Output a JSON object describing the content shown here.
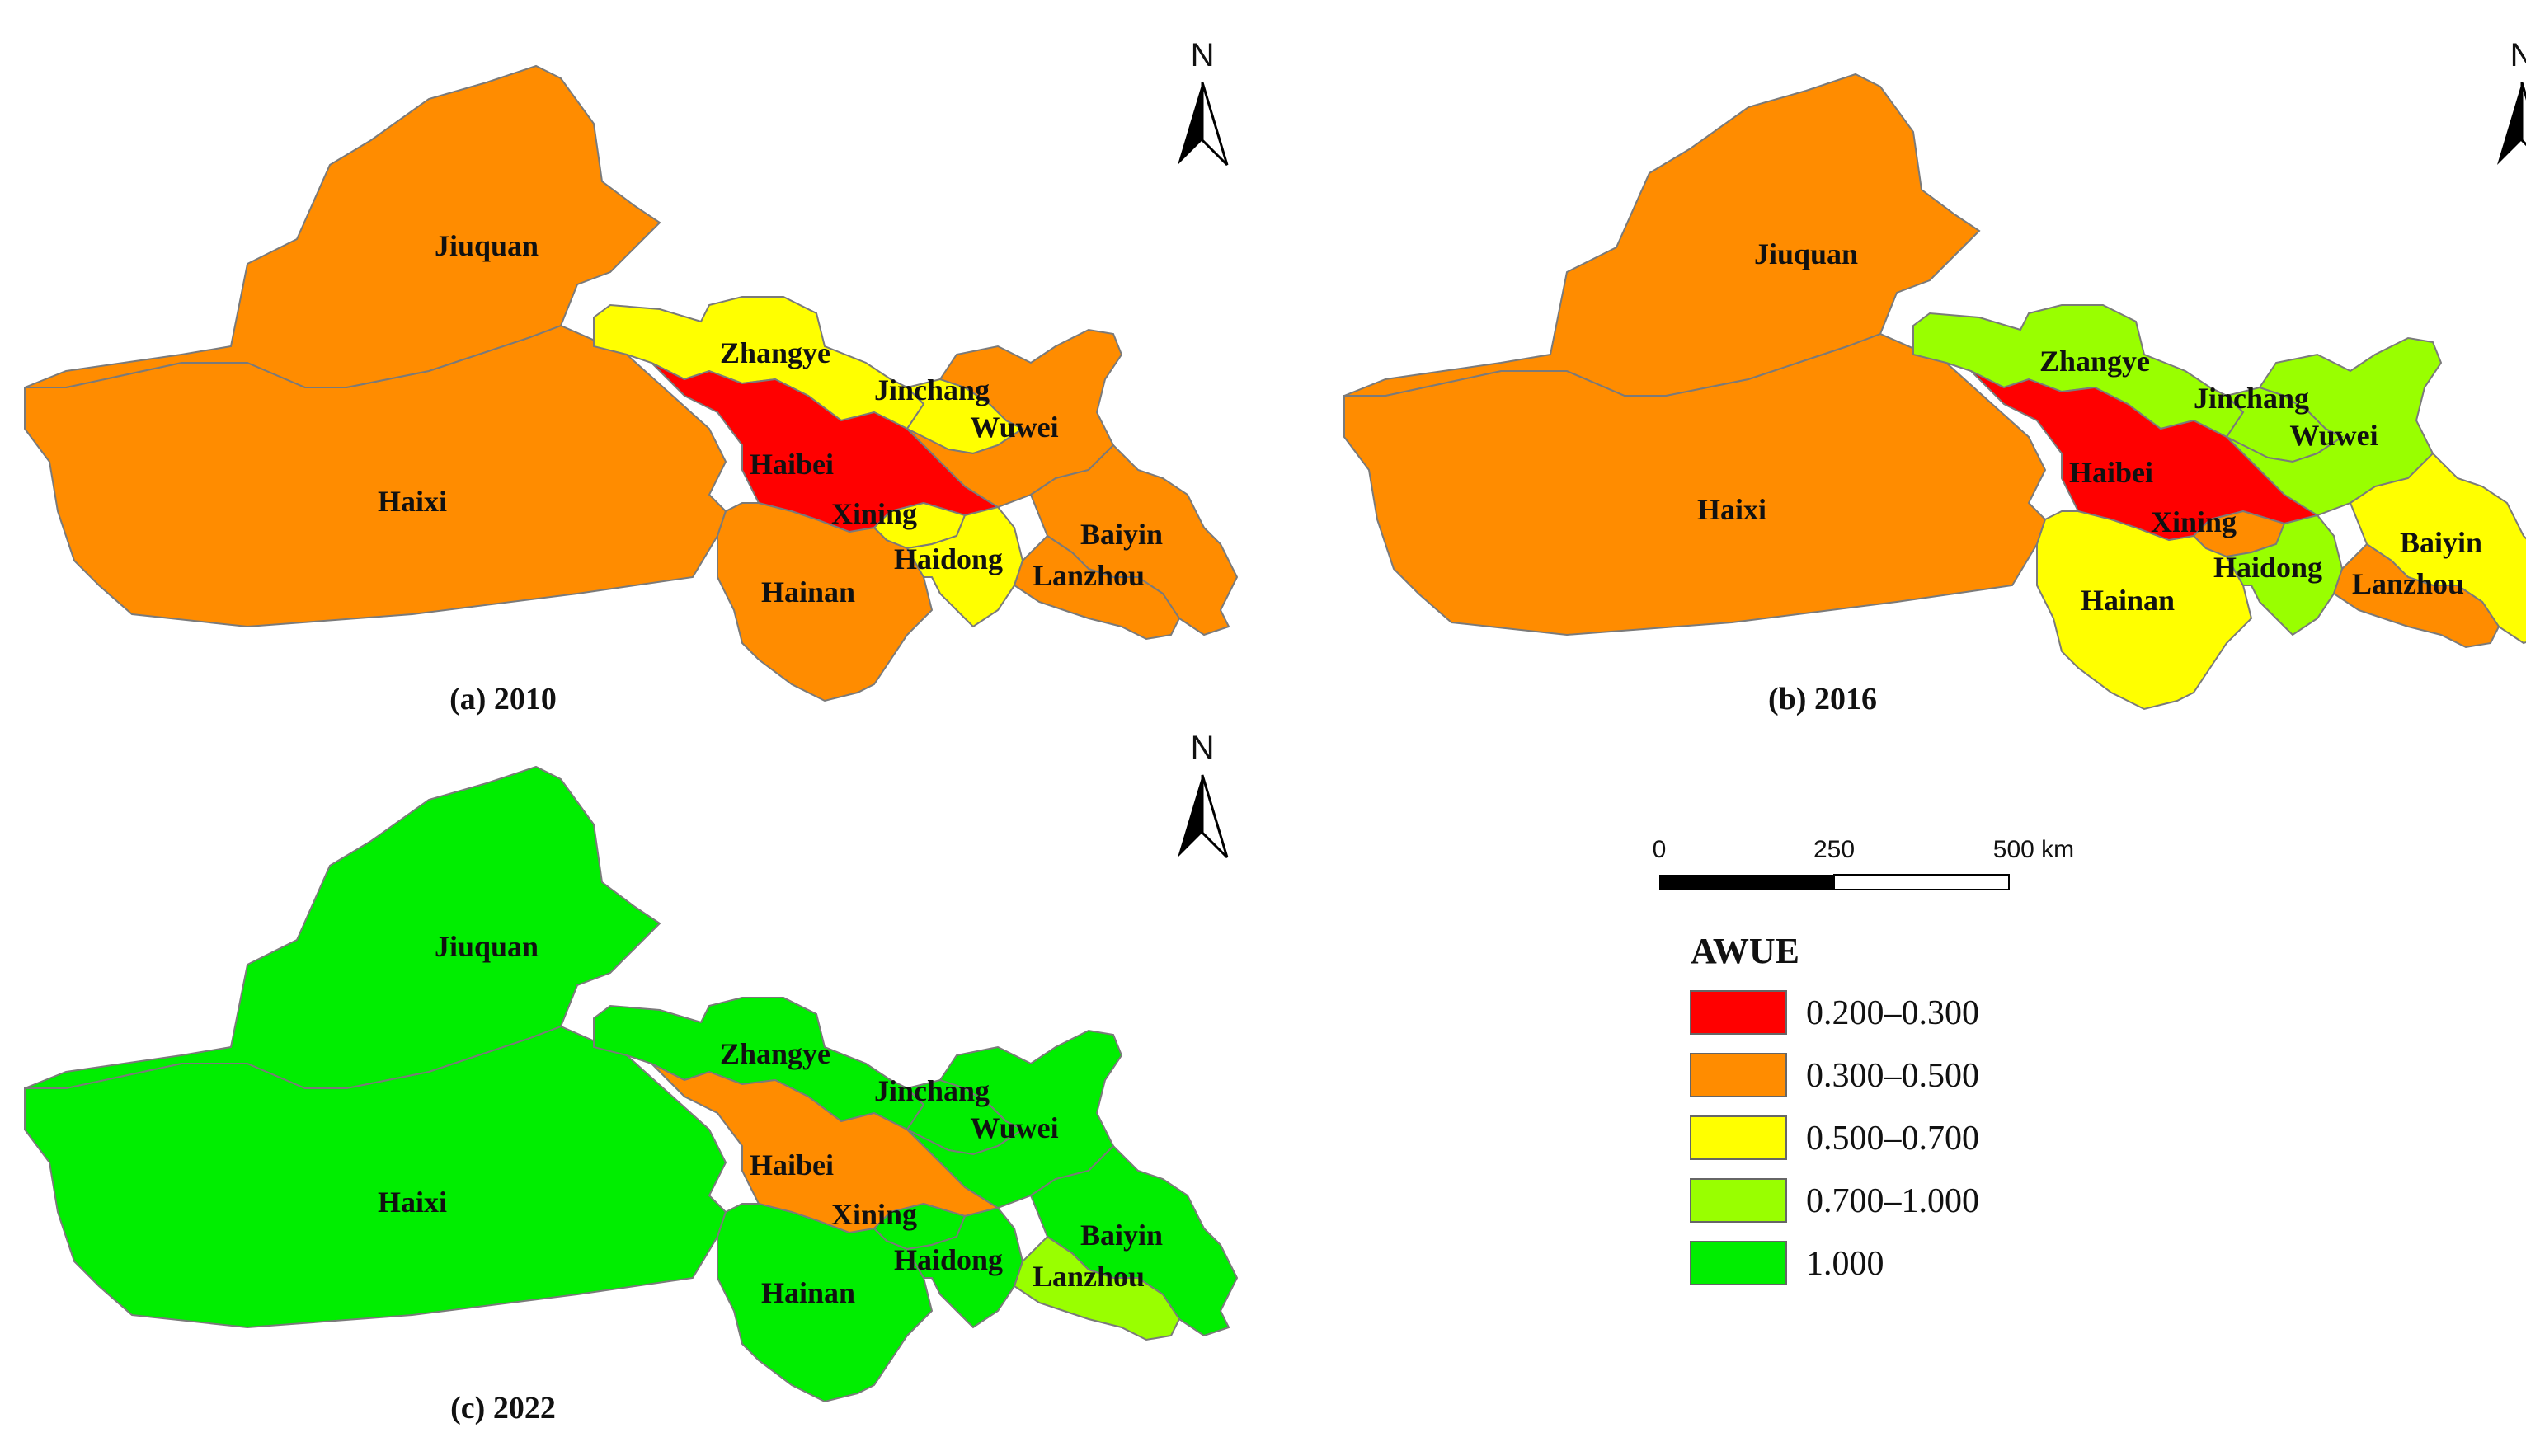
{
  "legend": {
    "title": "AWUE",
    "classes": [
      {
        "label": "0.200–0.300",
        "color": "#ff0000"
      },
      {
        "label": "0.300–0.500",
        "color": "#ff8c00"
      },
      {
        "label": "0.500–0.700",
        "color": "#ffff00"
      },
      {
        "label": "0.700–1.000",
        "color": "#99ff00"
      },
      {
        "label": "1.000",
        "color": "#00ee00"
      }
    ]
  },
  "scale_bar": {
    "labels": [
      "0",
      "250",
      "500 km"
    ]
  },
  "north_arrow": {
    "label": "N",
    "icon": "north-arrow-icon"
  },
  "region_names": {
    "jiuquan": "Jiuquan",
    "haixi": "Haixi",
    "zhangye": "Zhangye",
    "jinchang": "Jinchang",
    "wuwei": "Wuwei",
    "haibei": "Haibei",
    "xining": "Xining",
    "haidong": "Haidong",
    "hainan": "Hainan",
    "baiyin": "Baiyin",
    "lanzhou": "Lanzhou"
  },
  "panels": [
    {
      "caption": "(a)  2010",
      "classes": {
        "jiuquan": 1,
        "haixi": 1,
        "zhangye": 2,
        "jinchang": 2,
        "wuwei": 1,
        "haibei": 0,
        "xining": 2,
        "haidong": 2,
        "hainan": 1,
        "baiyin": 1,
        "lanzhou": 1
      }
    },
    {
      "caption": "(b)  2016",
      "classes": {
        "jiuquan": 1,
        "haixi": 1,
        "zhangye": 3,
        "jinchang": 3,
        "wuwei": 3,
        "haibei": 0,
        "xining": 1,
        "haidong": 3,
        "hainan": 2,
        "baiyin": 2,
        "lanzhou": 1
      }
    },
    {
      "caption": "(c)  2022",
      "classes": {
        "jiuquan": 4,
        "haixi": 4,
        "zhangye": 4,
        "jinchang": 4,
        "wuwei": 4,
        "haibei": 1,
        "xining": 4,
        "haidong": 4,
        "hainan": 4,
        "baiyin": 4,
        "lanzhou": 3
      }
    }
  ]
}
